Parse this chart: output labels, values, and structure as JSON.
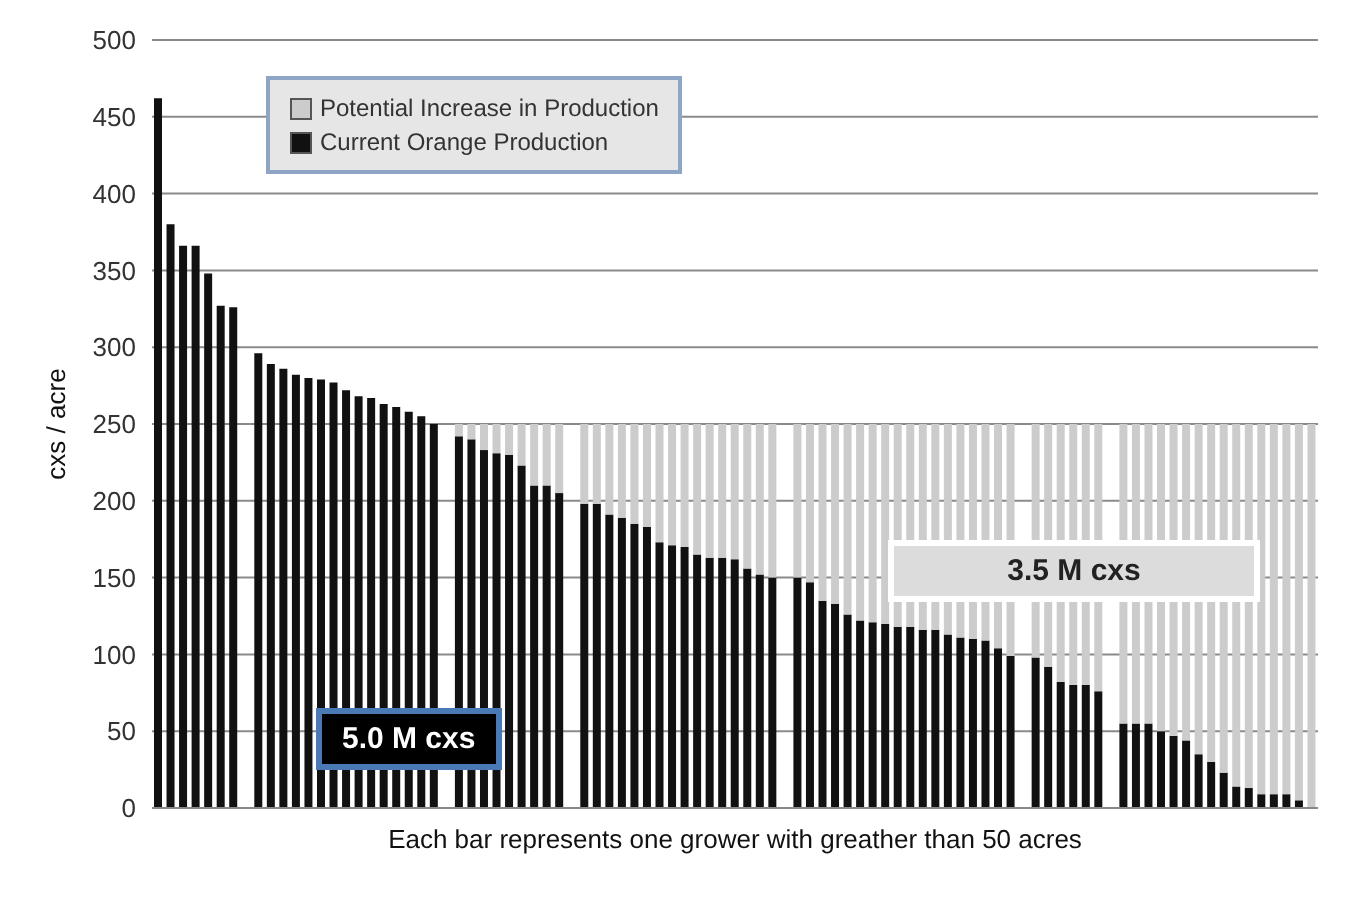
{
  "chart_data": {
    "type": "bar",
    "stacked": true,
    "ylabel": "cxs / acre",
    "xlabel": "Each bar represents one grower with greather than 50 acres",
    "categories": [
      null,
      null,
      null,
      null,
      null,
      null,
      null,
      null,
      null,
      null,
      null,
      null,
      null,
      null,
      null,
      null,
      null,
      null,
      null,
      null,
      null,
      null,
      null,
      null,
      null,
      null,
      null,
      null,
      null,
      null,
      null,
      null,
      null,
      null,
      null,
      null,
      null,
      null,
      null,
      null,
      null,
      null,
      null,
      null,
      null,
      null,
      null,
      null,
      null,
      null,
      null,
      null,
      null,
      null,
      null,
      null,
      null,
      null,
      null,
      null,
      null,
      null,
      null,
      null,
      null,
      null,
      null,
      null,
      null,
      null,
      null,
      null,
      null,
      null,
      null,
      null,
      null,
      null,
      null,
      null,
      null,
      null,
      null,
      null,
      null,
      null,
      null,
      null,
      null,
      null,
      null,
      null,
      null
    ],
    "series": [
      {
        "name": "Current Orange Production",
        "color": "#111111",
        "values": [
          462,
          380,
          366,
          366,
          348,
          327,
          326,
          null,
          296,
          289,
          286,
          282,
          280,
          279,
          277,
          272,
          268,
          267,
          263,
          261,
          258,
          255,
          250,
          null,
          242,
          240,
          233,
          231,
          230,
          223,
          210,
          210,
          205,
          null,
          198,
          198,
          191,
          189,
          185,
          183,
          173,
          171,
          170,
          165,
          163,
          163,
          162,
          156,
          152,
          150,
          null,
          150,
          147,
          135,
          133,
          126,
          122,
          121,
          120,
          118,
          118,
          116,
          116,
          113,
          111,
          110,
          109,
          104,
          99,
          null,
          98,
          92,
          82,
          80,
          80,
          76,
          null,
          55,
          55,
          55,
          50,
          47,
          44,
          35,
          30,
          23,
          14,
          13,
          9,
          9,
          9,
          5,
          0
        ]
      },
      {
        "name": "Potential Increase in Production",
        "color": "#cccccc",
        "values": [
          null,
          null,
          null,
          null,
          null,
          null,
          null,
          null,
          null,
          null,
          null,
          null,
          null,
          null,
          null,
          null,
          null,
          null,
          null,
          null,
          null,
          null,
          null,
          null,
          8,
          10,
          17,
          19,
          20,
          27,
          40,
          40,
          45,
          null,
          52,
          52,
          59,
          61,
          65,
          67,
          77,
          79,
          80,
          85,
          87,
          87,
          88,
          94,
          98,
          100,
          null,
          100,
          103,
          115,
          117,
          124,
          128,
          129,
          130,
          132,
          132,
          134,
          134,
          137,
          139,
          140,
          141,
          146,
          151,
          null,
          152,
          158,
          168,
          170,
          170,
          174,
          null,
          195,
          195,
          195,
          200,
          203,
          206,
          215,
          220,
          227,
          236,
          237,
          241,
          241,
          241,
          245,
          250
        ]
      }
    ],
    "ylim": [
      0,
      500
    ],
    "yticks": [
      0,
      50,
      100,
      150,
      200,
      250,
      300,
      350,
      400,
      450,
      500
    ],
    "grid": "y",
    "legend": "top left",
    "annotations": [
      "5.0 M cxs",
      "3.5 M cxs"
    ]
  }
}
